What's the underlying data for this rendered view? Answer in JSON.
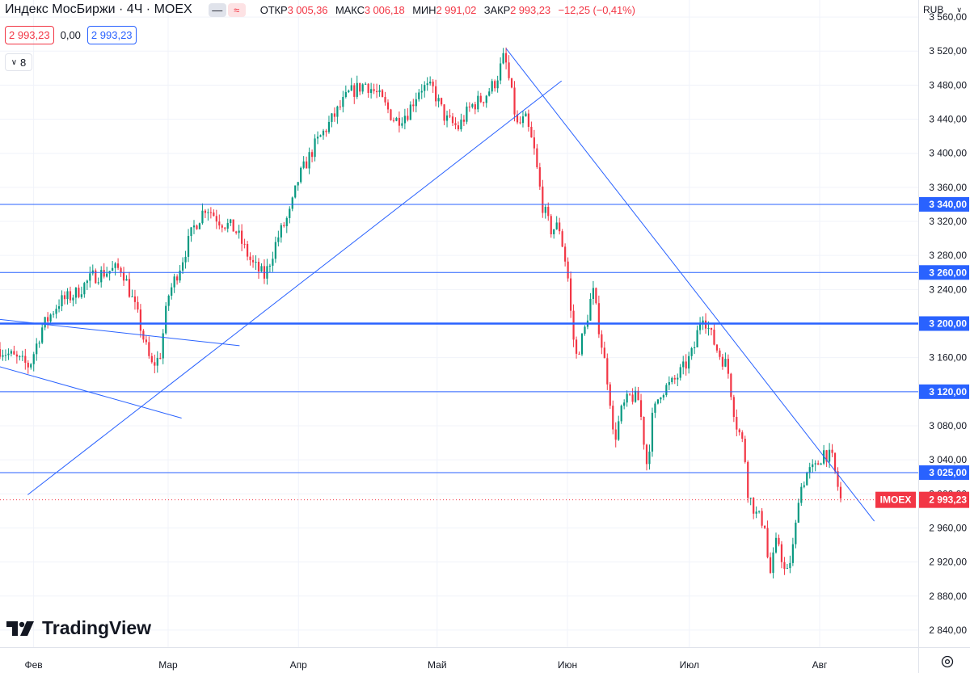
{
  "legend": {
    "title": "Индекс МосБиржи · 4Ч · MOEX",
    "open_label": "ОТКР",
    "open": "3 005,36",
    "high_label": "МАКС",
    "high": "3 006,18",
    "low_label": "МИН",
    "low": "2 991,02",
    "close_label": "ЗАКР",
    "close": "2 993,23",
    "change": "−12,25 (−0,41%)",
    "price_sell": "2 993,23",
    "spread": "0,00",
    "price_buy": "2 993,23",
    "indicators_count": "8"
  },
  "currency": "RUB",
  "logo_text": "TradingView",
  "icons": [
    "minus-icon",
    "wave-icon",
    "chevron-down-icon",
    "chevron-down-icon",
    "settings-icon",
    "tradingview-logo-icon"
  ],
  "colors": {
    "up": "#089981",
    "down": "#f23645",
    "line": "#2962ff",
    "grid": "#f0f3fa"
  },
  "chart_data": {
    "type": "candlestick",
    "symbol": "IMOEX",
    "last_price": "2 993,23",
    "ylim": [
      2820,
      3580
    ],
    "y_ticks": [
      {
        "v": 2840,
        "label": "2 840,00"
      },
      {
        "v": 2880,
        "label": "2 880,00"
      },
      {
        "v": 2920,
        "label": "2 920,00"
      },
      {
        "v": 2960,
        "label": "2 960,00"
      },
      {
        "v": 3000,
        "label": "3 000,00"
      },
      {
        "v": 3040,
        "label": "3 040,00"
      },
      {
        "v": 3080,
        "label": "3 080,00"
      },
      {
        "v": 3160,
        "label": "3 160,00"
      },
      {
        "v": 3240,
        "label": "3 240,00"
      },
      {
        "v": 3280,
        "label": "3 280,00"
      },
      {
        "v": 3320,
        "label": "3 320,00"
      },
      {
        "v": 3360,
        "label": "3 360,00"
      },
      {
        "v": 3400,
        "label": "3 400,00"
      },
      {
        "v": 3440,
        "label": "3 440,00"
      },
      {
        "v": 3480,
        "label": "3 480,00"
      },
      {
        "v": 3520,
        "label": "3 520,00"
      },
      {
        "v": 3560,
        "label": "3 560,00"
      }
    ],
    "x_ticks": [
      {
        "t": 0.04,
        "label": "Фев"
      },
      {
        "t": 0.2,
        "label": "Мар"
      },
      {
        "t": 0.355,
        "label": "Апр"
      },
      {
        "t": 0.52,
        "label": "Май"
      },
      {
        "t": 0.675,
        "label": "Июн"
      },
      {
        "t": 0.82,
        "label": "Июл"
      },
      {
        "t": 0.975,
        "label": "Авг"
      }
    ],
    "horizontal_levels": [
      {
        "v": 3340,
        "label": "3 340,00",
        "bold": false
      },
      {
        "v": 3260,
        "label": "3 260,00",
        "bold": false
      },
      {
        "v": 3200,
        "label": "3 200,00",
        "bold": true
      },
      {
        "v": 3120,
        "label": "3 120,00",
        "bold": false
      },
      {
        "v": 3025,
        "label": "3 025,00",
        "bold": false
      }
    ],
    "trend_lines": [
      {
        "from": [
          0.033,
          2999
        ],
        "to": [
          0.668,
          3485
        ]
      },
      {
        "from": [
          0.602,
          3523
        ],
        "to": [
          1.04,
          2968
        ]
      },
      {
        "from": [
          -0.01,
          3206
        ],
        "to": [
          0.285,
          3174
        ]
      },
      {
        "from": [
          -0.01,
          3152
        ],
        "to": [
          0.216,
          3089
        ]
      }
    ],
    "price_path": [
      [
        0.0,
        3170
      ],
      [
        0.02,
        3158
      ],
      [
        0.035,
        3150
      ],
      [
        0.05,
        3195
      ],
      [
        0.07,
        3225
      ],
      [
        0.09,
        3235
      ],
      [
        0.11,
        3255
      ],
      [
        0.13,
        3262
      ],
      [
        0.145,
        3265
      ],
      [
        0.155,
        3235
      ],
      [
        0.165,
        3205
      ],
      [
        0.17,
        3185
      ],
      [
        0.18,
        3150
      ],
      [
        0.19,
        3160
      ],
      [
        0.2,
        3232
      ],
      [
        0.215,
        3270
      ],
      [
        0.23,
        3312
      ],
      [
        0.245,
        3338
      ],
      [
        0.26,
        3322
      ],
      [
        0.28,
        3310
      ],
      [
        0.3,
        3270
      ],
      [
        0.315,
        3255
      ],
      [
        0.33,
        3300
      ],
      [
        0.345,
        3330
      ],
      [
        0.355,
        3370
      ],
      [
        0.375,
        3410
      ],
      [
        0.395,
        3440
      ],
      [
        0.415,
        3470
      ],
      [
        0.435,
        3482
      ],
      [
        0.45,
        3468
      ],
      [
        0.47,
        3438
      ],
      [
        0.485,
        3448
      ],
      [
        0.5,
        3478
      ],
      [
        0.515,
        3475
      ],
      [
        0.53,
        3440
      ],
      [
        0.545,
        3430
      ],
      [
        0.56,
        3455
      ],
      [
        0.575,
        3465
      ],
      [
        0.59,
        3485
      ],
      [
        0.6,
        3515
      ],
      [
        0.607,
        3478
      ],
      [
        0.615,
        3432
      ],
      [
        0.625,
        3440
      ],
      [
        0.635,
        3405
      ],
      [
        0.645,
        3340
      ],
      [
        0.655,
        3310
      ],
      [
        0.665,
        3315
      ],
      [
        0.675,
        3260
      ],
      [
        0.68,
        3200
      ],
      [
        0.685,
        3160
      ],
      [
        0.695,
        3190
      ],
      [
        0.705,
        3240
      ],
      [
        0.715,
        3180
      ],
      [
        0.725,
        3120
      ],
      [
        0.73,
        3060
      ],
      [
        0.74,
        3100
      ],
      [
        0.75,
        3115
      ],
      [
        0.76,
        3110
      ],
      [
        0.77,
        3030
      ],
      [
        0.775,
        3085
      ],
      [
        0.785,
        3120
      ],
      [
        0.8,
        3130
      ],
      [
        0.815,
        3150
      ],
      [
        0.825,
        3168
      ],
      [
        0.835,
        3215
      ],
      [
        0.845,
        3188
      ],
      [
        0.855,
        3165
      ],
      [
        0.865,
        3150
      ],
      [
        0.875,
        3085
      ],
      [
        0.885,
        3055
      ],
      [
        0.89,
        3000
      ],
      [
        0.9,
        2975
      ],
      [
        0.91,
        2965
      ],
      [
        0.915,
        2900
      ],
      [
        0.925,
        2950
      ],
      [
        0.935,
        2900
      ],
      [
        0.945,
        2945
      ],
      [
        0.95,
        3000
      ],
      [
        0.96,
        3025
      ],
      [
        0.97,
        3030
      ],
      [
        0.98,
        3050
      ],
      [
        0.99,
        3040
      ],
      [
        1.0,
        2993
      ]
    ]
  }
}
